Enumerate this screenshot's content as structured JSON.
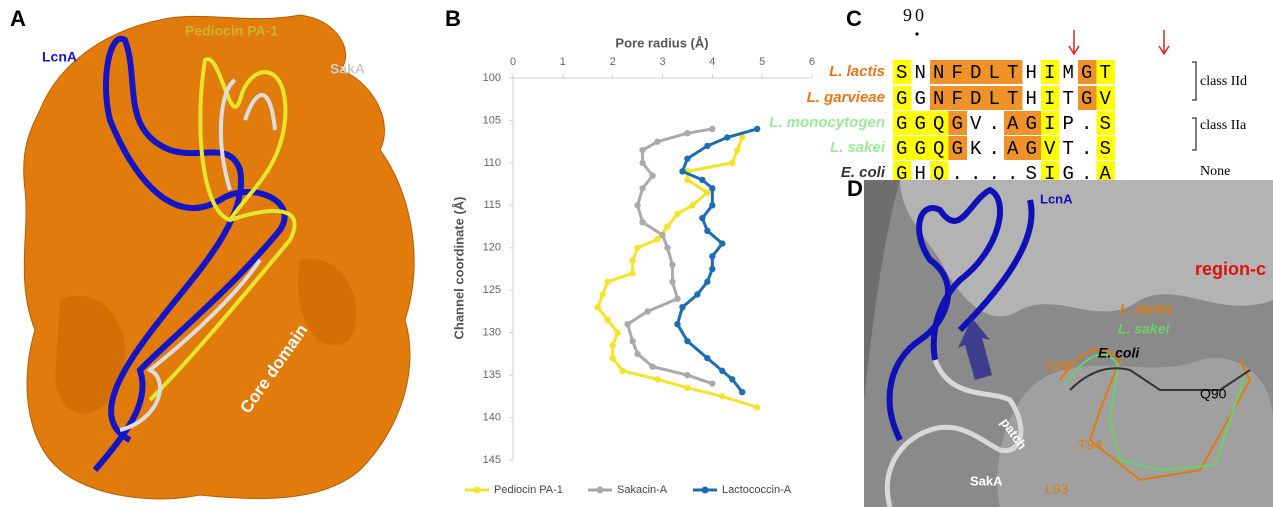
{
  "panel_a": {
    "letter": "A",
    "lcna": "LcnA",
    "pediocin": "Pediocin PA-1",
    "saka": "SakA",
    "core": "Core domain"
  },
  "chart_data": {
    "type": "line",
    "panel_label": "B",
    "xlabel": "Pore radius (Å)",
    "ylabel": "Channel coordinate (Å)",
    "xlim": [
      0,
      6
    ],
    "xticks": [
      0,
      1,
      2,
      3,
      4,
      5,
      6
    ],
    "x_axis_position": "top",
    "ylim": [
      100,
      145
    ],
    "yticks": [
      100,
      105,
      110,
      115,
      120,
      125,
      130,
      135,
      140,
      145
    ],
    "y_reversed": true,
    "grid": false,
    "legend": "bottom",
    "series": [
      {
        "name": "Pediocin PA-1",
        "color": "#f2e42a",
        "x": [
          4.6,
          4.5,
          4.4,
          3.5,
          3.5,
          3.9,
          3.6,
          3.3,
          3.1,
          2.9,
          2.5,
          2.4,
          2.4,
          1.9,
          1.8,
          1.7,
          1.9,
          2.1,
          2.0,
          2.0,
          2.2,
          2.9,
          3.5,
          4.2,
          4.9
        ],
        "values": [
          107,
          108.5,
          110,
          111,
          112,
          113.5,
          115,
          116,
          117.5,
          119,
          120,
          121.5,
          123,
          124,
          125.5,
          127,
          128.5,
          130,
          131.5,
          133,
          134.5,
          135.5,
          136.5,
          137.5,
          138.8
        ]
      },
      {
        "name": "Sakacin-A",
        "color": "#aaaaaa",
        "x": [
          4.0,
          3.5,
          2.9,
          2.6,
          2.6,
          2.8,
          2.6,
          2.5,
          2.6,
          3.0,
          3.1,
          3.2,
          3.2,
          3.3,
          2.7,
          2.3,
          2.4,
          2.5,
          2.8,
          3.5,
          4.0
        ],
        "values": [
          106,
          106.5,
          107.5,
          108.5,
          110,
          111.5,
          113,
          115,
          117,
          118.5,
          120,
          122,
          124,
          126,
          127.5,
          129,
          131,
          132.5,
          134,
          135,
          136
        ]
      },
      {
        "name": "Lactococcin-A",
        "color": "#1a6fb0",
        "x": [
          4.9,
          4.3,
          3.9,
          3.5,
          3.4,
          3.8,
          4.0,
          4.0,
          3.8,
          3.9,
          4.2,
          4.0,
          4.0,
          3.9,
          3.7,
          3.4,
          3.3,
          3.5,
          3.9,
          4.2,
          4.4,
          4.6
        ],
        "values": [
          106,
          107,
          108,
          109.5,
          111,
          112,
          113,
          115,
          116.5,
          118,
          119.5,
          121,
          122.5,
          124,
          125.5,
          127,
          129,
          131,
          133,
          134.5,
          135.5,
          137
        ]
      }
    ]
  },
  "panel_c": {
    "letter": "C",
    "position_label": "90",
    "rows": [
      {
        "species": "L. lactis",
        "sequence": "SNNFDLTHIMGT",
        "color": "#e8761a"
      },
      {
        "species": "L. garvieae",
        "sequence": "GGNFDLTHITGV",
        "color": "#e8761a"
      },
      {
        "species": "L. monocytogen",
        "sequence": "GGQGV.AGIP.S",
        "color": "#9be89b"
      },
      {
        "species": "L. sakei",
        "sequence": "GGQGK.AGVT.S",
        "color": "#9be89b"
      },
      {
        "species": "E. coli",
        "sequence": "GHQ....SIG.A",
        "color": "#333333"
      }
    ],
    "groups": [
      "class IId",
      "class IIa",
      "None"
    ]
  },
  "panel_d": {
    "letter": "D",
    "lcna": "LcnA",
    "region": "region-c",
    "l_lactis": "L. lactis",
    "l_sakei": "L. sakei",
    "e_coli": "E. coli",
    "g98": "G98",
    "q90": "Q90",
    "t94": "T94",
    "l93": "L93",
    "patch": "patch",
    "saka": "SakA"
  }
}
